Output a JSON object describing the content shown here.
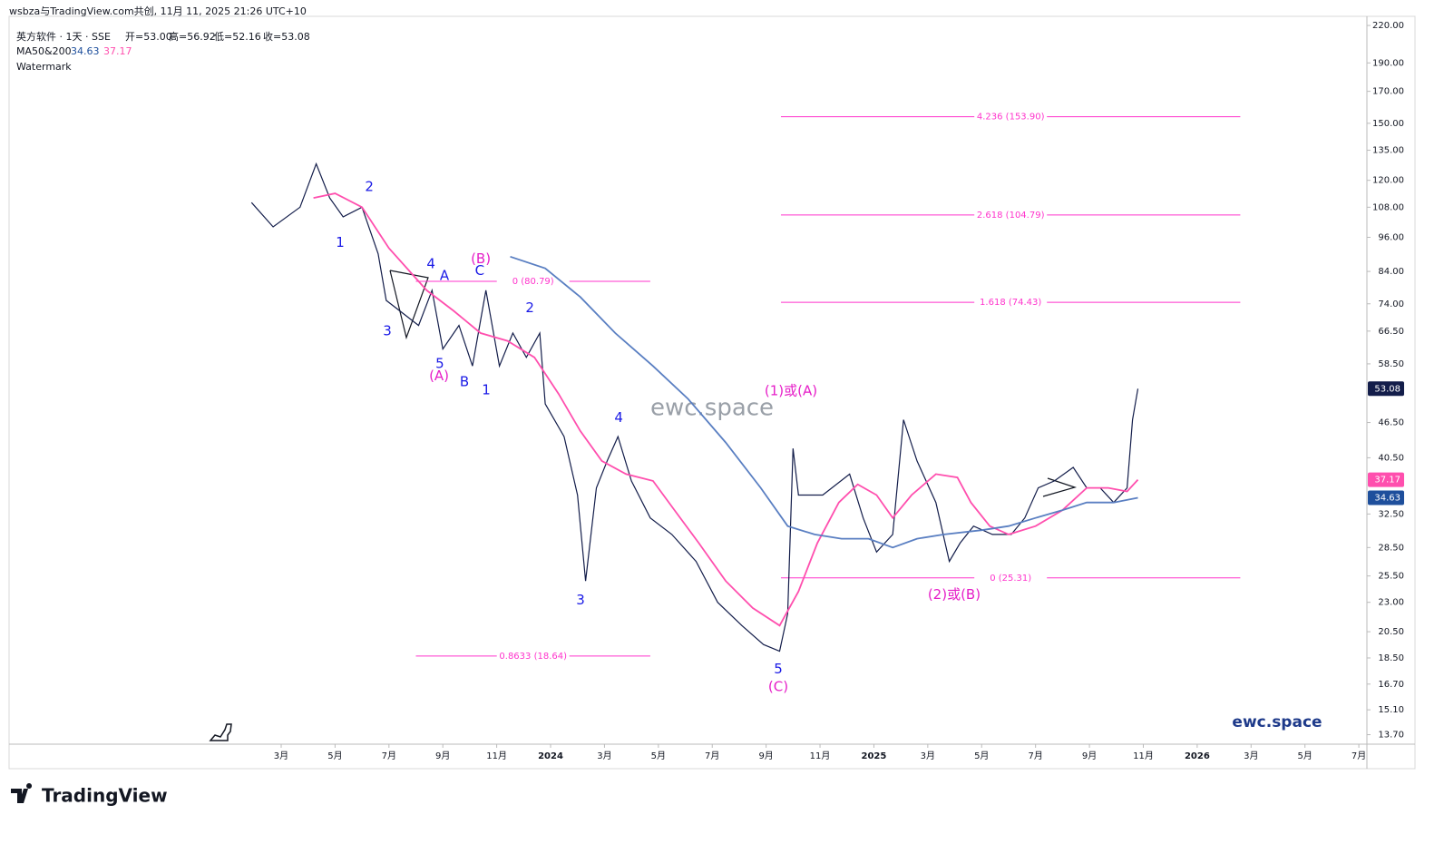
{
  "chart_data": {
    "type": "line",
    "attribution": "wsbza与TradingView.com共创, 11月 11, 2025 21:26 UTC+10",
    "title": "英方软件 · 1天 · SSE",
    "ohlc": [
      "开=53.00",
      "高=56.92",
      "低=52.16",
      "收=53.08"
    ],
    "indicator_name": "MA50&200",
    "legend_extra": "Watermark",
    "watermark": "ewc.space",
    "brand_mark": "ewc.space",
    "footer": "TradingView",
    "log_scale": true,
    "xlim": [
      -8.1,
      42.3
    ],
    "ylim": [
      13.2,
      228
    ],
    "xticks": [
      {
        "value": 2,
        "label": "3月"
      },
      {
        "value": 4,
        "label": "5月"
      },
      {
        "value": 6,
        "label": "7月"
      },
      {
        "value": 8,
        "label": "9月"
      },
      {
        "value": 10,
        "label": "11月"
      },
      {
        "value": 12,
        "label": "2024"
      },
      {
        "value": 14,
        "label": "3月"
      },
      {
        "value": 16,
        "label": "5月"
      },
      {
        "value": 18,
        "label": "7月"
      },
      {
        "value": 20,
        "label": "9月"
      },
      {
        "value": 22,
        "label": "11月"
      },
      {
        "value": 24,
        "label": "2025"
      },
      {
        "value": 26,
        "label": "3月"
      },
      {
        "value": 28,
        "label": "5月"
      },
      {
        "value": 30,
        "label": "7月"
      },
      {
        "value": 32,
        "label": "9月"
      },
      {
        "value": 34,
        "label": "11月"
      },
      {
        "value": 36,
        "label": "2026"
      },
      {
        "value": 38,
        "label": "3月"
      },
      {
        "value": 40,
        "label": "5月"
      },
      {
        "value": 42,
        "label": "7月"
      }
    ],
    "yticks": [
      {
        "value": 220,
        "label": "220.00"
      },
      {
        "value": 190,
        "label": "190.00"
      },
      {
        "value": 170,
        "label": "170.00"
      },
      {
        "value": 150,
        "label": "150.00"
      },
      {
        "value": 135,
        "label": "135.00"
      },
      {
        "value": 120,
        "label": "120.00"
      },
      {
        "value": 108,
        "label": "108.00"
      },
      {
        "value": 96,
        "label": "96.00"
      },
      {
        "value": 84,
        "label": "84.00"
      },
      {
        "value": 74,
        "label": "74.00"
      },
      {
        "value": 66.5,
        "label": "66.50"
      },
      {
        "value": 58.5,
        "label": "58.50"
      },
      {
        "value": 46.5,
        "label": "46.50"
      },
      {
        "value": 40.5,
        "label": "40.50"
      },
      {
        "value": 32.5,
        "label": "32.50"
      },
      {
        "value": 28.5,
        "label": "28.50"
      },
      {
        "value": 25.5,
        "label": "25.50"
      },
      {
        "value": 23,
        "label": "23.00"
      },
      {
        "value": 20.5,
        "label": "20.50"
      },
      {
        "value": 18.5,
        "label": "18.50"
      },
      {
        "value": 16.7,
        "label": "16.70"
      },
      {
        "value": 15.1,
        "label": "15.10"
      },
      {
        "value": 13.7,
        "label": "13.70"
      }
    ],
    "series": [
      {
        "name": "英方软件",
        "color": "#131d4a",
        "tag_bg": "#131d4a",
        "x": [
          0.9,
          1.7,
          2.7,
          3.3,
          3.8,
          4.3,
          5.0,
          5.6,
          5.9,
          6.4,
          7.1,
          7.6,
          8.0,
          8.6,
          9.1,
          9.6,
          10.1,
          10.6,
          11.1,
          11.6,
          11.8,
          12.5,
          13.0,
          13.3,
          13.7,
          14.1,
          14.5,
          15.0,
          15.7,
          16.5,
          17.4,
          18.2,
          19.1,
          19.9,
          20.5,
          20.8,
          21.0,
          21.2,
          22.1,
          23.1,
          23.6,
          24.1,
          24.7,
          25.1,
          25.6,
          26.3,
          26.8,
          27.2,
          27.7,
          28.4,
          29.1,
          29.6,
          30.1,
          30.7,
          31.4,
          31.9,
          32.4,
          32.9,
          33.4,
          33.6,
          33.8
        ],
        "values": [
          110,
          100,
          108,
          128,
          112,
          104,
          108,
          90,
          75,
          72,
          68,
          78,
          62,
          68,
          58,
          78,
          58,
          66,
          60,
          66,
          50,
          44,
          35,
          25,
          36,
          40,
          44,
          37,
          32,
          30,
          27,
          23,
          21,
          19.5,
          19,
          22,
          42,
          35,
          35,
          38,
          32,
          28,
          30,
          47,
          40,
          34,
          27,
          29,
          31,
          30,
          30,
          32,
          36,
          37,
          39,
          36,
          36,
          34,
          36,
          47,
          53.08
        ]
      },
      {
        "name": "MA50",
        "color": "#ff4fae",
        "tag_bg": "#ff4fae",
        "x": [
          3.2,
          4.0,
          5.0,
          6.0,
          7.4,
          8.4,
          9.4,
          10.4,
          11.4,
          12.3,
          13.1,
          13.9,
          14.8,
          15.8,
          16.6,
          17.5,
          18.5,
          19.5,
          20.5,
          21.2,
          21.9,
          22.7,
          23.4,
          24.1,
          24.7,
          25.4,
          26.3,
          27.1,
          27.6,
          28.3,
          29.0,
          30.0,
          31.0,
          31.9,
          32.7,
          33.4,
          33.8
        ],
        "values": [
          112,
          114,
          108,
          92,
          78,
          72,
          66,
          64,
          60,
          52,
          45,
          40,
          38,
          37,
          33,
          29,
          25,
          22.5,
          21,
          24,
          29,
          34,
          36.5,
          35,
          32,
          35,
          38,
          37.5,
          34,
          31,
          30,
          31,
          33,
          36,
          36,
          35.5,
          37.17
        ]
      },
      {
        "name": "MA200",
        "color": "#5a7fc2",
        "tag_bg": "#1e4f9c",
        "x": [
          10.5,
          11.8,
          13.1,
          14.4,
          15.8,
          17.1,
          18.5,
          19.8,
          20.8,
          21.8,
          22.8,
          23.8,
          24.7,
          25.6,
          26.6,
          28.0,
          29.0,
          30.0,
          31.0,
          31.9,
          32.9,
          33.8
        ],
        "values": [
          89,
          85,
          76,
          66,
          58,
          51,
          43,
          36,
          31,
          30,
          29.5,
          29.5,
          28.5,
          29.5,
          30,
          30.5,
          31,
          32,
          33,
          34,
          34,
          34.63
        ]
      }
    ],
    "fib_levels": [
      {
        "label": "4.236 (153.90)",
        "value": 153.9,
        "x0": 20.55,
        "x1": 37.6
      },
      {
        "label": "2.618 (104.79)",
        "value": 104.79,
        "x0": 20.55,
        "x1": 37.6
      },
      {
        "label": "1.618 (74.43)",
        "value": 74.43,
        "x0": 20.55,
        "x1": 37.6
      },
      {
        "label": "0 (25.31)",
        "value": 25.31,
        "x0": 20.55,
        "x1": 37.6
      },
      {
        "label": "0 (80.79)",
        "value": 80.79,
        "x0": 7.0,
        "x1": 15.7
      },
      {
        "label": "0.8633 (18.64)",
        "value": 18.64,
        "x0": 7.0,
        "x1": 15.7
      }
    ],
    "fib_color": "#ff33cc",
    "annotations": [
      {
        "text": "2",
        "x": 5.27,
        "y": 117,
        "color": "#1a1ae6"
      },
      {
        "text": "1",
        "x": 4.19,
        "y": 94,
        "color": "#1a1ae6"
      },
      {
        "text": "4",
        "x": 7.56,
        "y": 86.5,
        "color": "#1a1ae6"
      },
      {
        "text": "A",
        "x": 8.06,
        "y": 82.6,
        "color": "#1a1ae6"
      },
      {
        "text": "(B)",
        "x": 9.41,
        "y": 88.1,
        "color": "#e61fc8"
      },
      {
        "text": "C",
        "x": 9.37,
        "y": 84.1,
        "color": "#1a1ae6"
      },
      {
        "text": "3",
        "x": 5.94,
        "y": 66.5,
        "color": "#1a1ae6"
      },
      {
        "text": "5",
        "x": 7.89,
        "y": 58.5,
        "color": "#1a1ae6"
      },
      {
        "text": "(A)",
        "x": 7.86,
        "y": 55.7,
        "color": "#e61fc8"
      },
      {
        "text": "B",
        "x": 8.8,
        "y": 54.5,
        "color": "#1a1ae6"
      },
      {
        "text": "1",
        "x": 9.61,
        "y": 52.8,
        "color": "#1a1ae6"
      },
      {
        "text": "2",
        "x": 11.23,
        "y": 72.7,
        "color": "#1a1ae6"
      },
      {
        "text": "4",
        "x": 14.53,
        "y": 47.3,
        "color": "#1a1ae6"
      },
      {
        "text": "3",
        "x": 13.11,
        "y": 23.2,
        "color": "#1a1ae6"
      },
      {
        "text": "(1)或(A)",
        "x": 20.92,
        "y": 52.6,
        "color": "#e61fc8"
      },
      {
        "text": "5",
        "x": 20.45,
        "y": 17.7,
        "color": "#1a1ae6"
      },
      {
        "text": "(C)",
        "x": 20.45,
        "y": 16.5,
        "color": "#e61fc8"
      },
      {
        "text": "(2)或(B)",
        "x": 26.98,
        "y": 23.7,
        "color": "#e61fc8"
      }
    ]
  }
}
